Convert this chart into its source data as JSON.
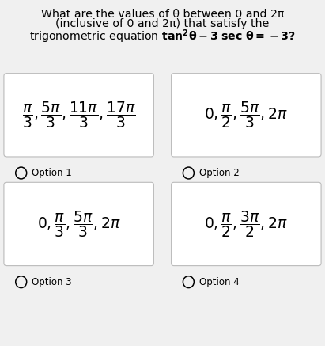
{
  "title_line1": "What are the values of θ between 0 and 2π",
  "title_line2": "(inclusive of 0 and 2π) that satisfy the",
  "title_line3": "trigonometric equation $\\mathbf{tan^2\\theta - 3\\ sec\\ \\theta = -3?}$",
  "option1_math": "$\\dfrac{\\pi}{3}, \\dfrac{5\\pi}{3}, \\dfrac{11\\pi}{3}, \\dfrac{17\\pi}{3}$",
  "option2_math": "$0 ,\\dfrac{\\pi}{2}, \\dfrac{5\\pi}{3}, 2\\pi$",
  "option3_math": "$0, \\dfrac{\\pi}{3}, \\dfrac{5\\pi}{3}, 2\\pi$",
  "option4_math": "$0, \\dfrac{\\pi}{2}, \\dfrac{3\\pi}{2}, 2\\pi$",
  "option1_label": "Option 1",
  "option2_label": "Option 2",
  "option3_label": "Option 3",
  "option4_label": "Option 4",
  "bg_color": "#f0f0f0",
  "box_color": "#ffffff",
  "border_color": "#bbbbbb",
  "title_fontsize": 10.2,
  "option_math_fontsize": 13.5,
  "option_label_fontsize": 8.5
}
